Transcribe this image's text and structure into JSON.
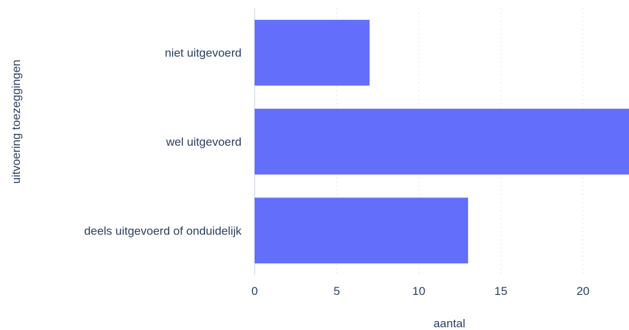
{
  "chart_data": {
    "type": "bar",
    "orientation": "horizontal",
    "categories": [
      "niet uitgevoerd",
      "wel uitgevoerd",
      "deels uitgevoerd of onduidelijk"
    ],
    "values": [
      7,
      23,
      13
    ],
    "xlabel": "aantal",
    "ylabel": "uitvoering toezeggingen",
    "xlim": [
      0,
      22.8
    ],
    "xticks": [
      0,
      5,
      10,
      15,
      20
    ],
    "grid": true,
    "bar_color": "#636efa",
    "text_color": "#2a3f5f",
    "grid_color": "#e3e7ee"
  }
}
